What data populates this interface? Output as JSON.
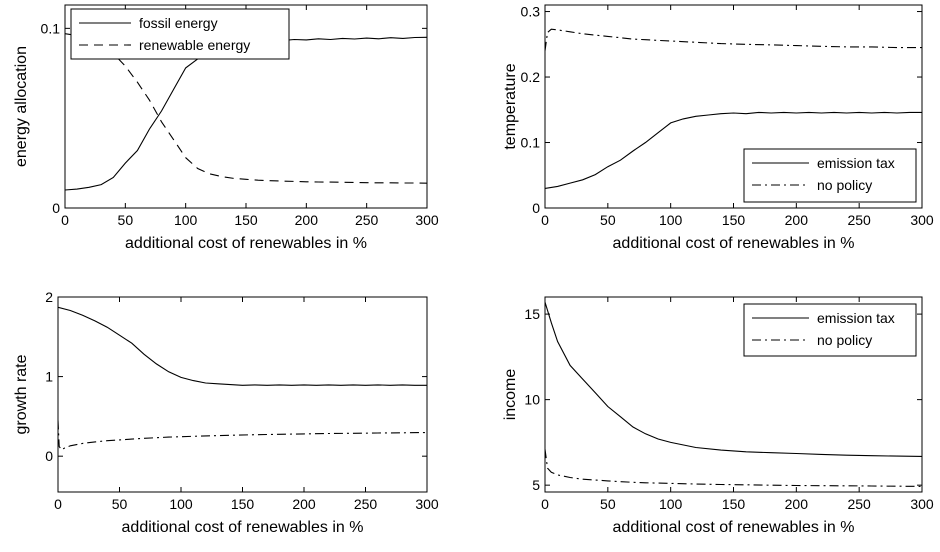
{
  "chart_data": [
    {
      "type": "line",
      "xlabel": "additional cost of renewables in %",
      "ylabel": "energy allocation",
      "xlim": [
        0,
        300
      ],
      "ylim": [
        0,
        0.113
      ],
      "xticks": [
        0,
        50,
        100,
        150,
        200,
        250,
        300
      ],
      "yticks": [
        0,
        0.1
      ],
      "ytick_labels": [
        "0",
        "0.1"
      ],
      "grid": false,
      "legend_position": "top-left",
      "series": [
        {
          "name": "fossil energy",
          "style": "solid",
          "x": [
            0,
            10,
            20,
            30,
            40,
            50,
            60,
            70,
            80,
            90,
            100,
            110,
            120,
            130,
            140,
            150,
            160,
            170,
            180,
            190,
            200,
            210,
            220,
            230,
            240,
            250,
            260,
            270,
            280,
            290,
            300
          ],
          "y": [
            0.01,
            0.0105,
            0.0115,
            0.013,
            0.017,
            0.025,
            0.032,
            0.044,
            0.054,
            0.066,
            0.078,
            0.083,
            0.087,
            0.089,
            0.091,
            0.093,
            0.0928,
            0.0935,
            0.0932,
            0.0938,
            0.0936,
            0.0942,
            0.0938,
            0.0944,
            0.0941,
            0.0946,
            0.0942,
            0.0948,
            0.0944,
            0.0949,
            0.095
          ]
        },
        {
          "name": "renewable energy",
          "style": "dashed",
          "x": [
            0,
            10,
            20,
            30,
            40,
            50,
            60,
            70,
            80,
            90,
            100,
            110,
            120,
            130,
            140,
            150,
            160,
            170,
            180,
            190,
            200,
            210,
            220,
            230,
            240,
            250,
            260,
            270,
            280,
            290,
            300
          ],
          "y": [
            0.097,
            0.096,
            0.094,
            0.091,
            0.086,
            0.079,
            0.07,
            0.06,
            0.048,
            0.038,
            0.028,
            0.022,
            0.019,
            0.0175,
            0.0165,
            0.016,
            0.0155,
            0.0152,
            0.015,
            0.0148,
            0.0146,
            0.0145,
            0.0144,
            0.0143,
            0.0142,
            0.0141,
            0.014,
            0.014,
            0.0139,
            0.0139,
            0.0138
          ]
        }
      ]
    },
    {
      "type": "line",
      "xlabel": "additional cost of renewables in %",
      "ylabel": "temperature",
      "xlim": [
        0,
        300
      ],
      "ylim": [
        0,
        0.31
      ],
      "xticks": [
        0,
        50,
        100,
        150,
        200,
        250,
        300
      ],
      "yticks": [
        0,
        0.1,
        0.2,
        0.3
      ],
      "ytick_labels": [
        "0",
        "0.1",
        "0.2",
        "0.3"
      ],
      "grid": false,
      "legend_position": "bottom-right",
      "series": [
        {
          "name": "emission tax",
          "style": "solid",
          "x": [
            0,
            10,
            20,
            30,
            40,
            50,
            60,
            70,
            80,
            90,
            100,
            110,
            120,
            130,
            140,
            150,
            160,
            170,
            180,
            190,
            200,
            210,
            220,
            230,
            240,
            250,
            260,
            270,
            280,
            290,
            300
          ],
          "y": [
            0.03,
            0.033,
            0.038,
            0.043,
            0.051,
            0.063,
            0.073,
            0.087,
            0.1,
            0.115,
            0.13,
            0.136,
            0.14,
            0.142,
            0.144,
            0.145,
            0.144,
            0.146,
            0.145,
            0.146,
            0.145,
            0.146,
            0.145,
            0.146,
            0.145,
            0.146,
            0.145,
            0.146,
            0.145,
            0.146,
            0.146
          ]
        },
        {
          "name": "no policy",
          "style": "dashdot",
          "x": [
            0,
            2,
            5,
            10,
            20,
            30,
            40,
            50,
            60,
            70,
            80,
            90,
            100,
            120,
            140,
            160,
            180,
            200,
            220,
            240,
            260,
            280,
            300
          ],
          "y": [
            0.24,
            0.268,
            0.273,
            0.272,
            0.269,
            0.266,
            0.264,
            0.262,
            0.26,
            0.258,
            0.257,
            0.256,
            0.255,
            0.253,
            0.251,
            0.25,
            0.249,
            0.248,
            0.247,
            0.246,
            0.246,
            0.245,
            0.245
          ]
        }
      ]
    },
    {
      "type": "line",
      "xlabel": "additional cost of renewables in %",
      "ylabel": "growth rate",
      "xlim": [
        0,
        300
      ],
      "ylim": [
        -0.45,
        2.0
      ],
      "xticks": [
        0,
        50,
        100,
        150,
        200,
        250,
        300
      ],
      "yticks": [
        0,
        1,
        2
      ],
      "ytick_labels": [
        "0",
        "1",
        "2"
      ],
      "grid": false,
      "legend_position": "top-right",
      "series": [
        {
          "name": "emission tax",
          "style": "solid",
          "x": [
            0,
            10,
            20,
            30,
            40,
            50,
            60,
            70,
            80,
            90,
            100,
            110,
            120,
            130,
            140,
            150,
            160,
            170,
            180,
            190,
            200,
            210,
            220,
            230,
            240,
            250,
            260,
            270,
            280,
            290,
            300
          ],
          "y": [
            1.87,
            1.83,
            1.77,
            1.7,
            1.62,
            1.52,
            1.42,
            1.28,
            1.16,
            1.06,
            0.99,
            0.95,
            0.92,
            0.91,
            0.9,
            0.89,
            0.895,
            0.89,
            0.895,
            0.89,
            0.895,
            0.89,
            0.895,
            0.89,
            0.895,
            0.89,
            0.895,
            0.89,
            0.895,
            0.89,
            0.89
          ]
        },
        {
          "name": "no policy",
          "style": "dashdot",
          "x": [
            0,
            1,
            3,
            5,
            10,
            20,
            30,
            40,
            50,
            60,
            70,
            80,
            90,
            100,
            120,
            140,
            160,
            180,
            200,
            220,
            240,
            260,
            280,
            300
          ],
          "y": [
            0.45,
            0.12,
            0.08,
            0.1,
            0.13,
            0.16,
            0.18,
            0.195,
            0.205,
            0.215,
            0.225,
            0.232,
            0.24,
            0.245,
            0.255,
            0.262,
            0.27,
            0.275,
            0.28,
            0.285,
            0.288,
            0.291,
            0.294,
            0.297
          ]
        }
      ]
    },
    {
      "type": "line",
      "xlabel": "additional cost of renewables in %",
      "ylabel": "income",
      "xlim": [
        0,
        300
      ],
      "ylim": [
        4.6,
        16.0
      ],
      "xticks": [
        0,
        50,
        100,
        150,
        200,
        250,
        300
      ],
      "yticks": [
        5,
        10,
        15
      ],
      "ytick_labels": [
        "5",
        "10",
        "15"
      ],
      "grid": false,
      "legend_position": "top-right",
      "series": [
        {
          "name": "emission tax",
          "style": "solid",
          "x": [
            0,
            5,
            10,
            20,
            30,
            40,
            50,
            60,
            70,
            80,
            90,
            100,
            120,
            140,
            160,
            180,
            200,
            220,
            240,
            260,
            280,
            300
          ],
          "y": [
            15.7,
            14.5,
            13.4,
            12.0,
            11.2,
            10.4,
            9.6,
            9.0,
            8.4,
            8.0,
            7.7,
            7.5,
            7.2,
            7.05,
            6.95,
            6.9,
            6.85,
            6.8,
            6.75,
            6.72,
            6.7,
            6.68
          ]
        },
        {
          "name": "no policy",
          "style": "dashdot",
          "x": [
            0,
            2,
            5,
            10,
            20,
            30,
            40,
            50,
            60,
            70,
            80,
            90,
            100,
            120,
            140,
            160,
            180,
            200,
            220,
            240,
            260,
            280,
            300
          ],
          "y": [
            7.1,
            6.0,
            5.75,
            5.6,
            5.45,
            5.35,
            5.3,
            5.25,
            5.2,
            5.17,
            5.14,
            5.12,
            5.1,
            5.07,
            5.04,
            5.02,
            5.0,
            4.98,
            4.97,
            4.96,
            4.95,
            4.94,
            4.93
          ]
        }
      ]
    }
  ]
}
